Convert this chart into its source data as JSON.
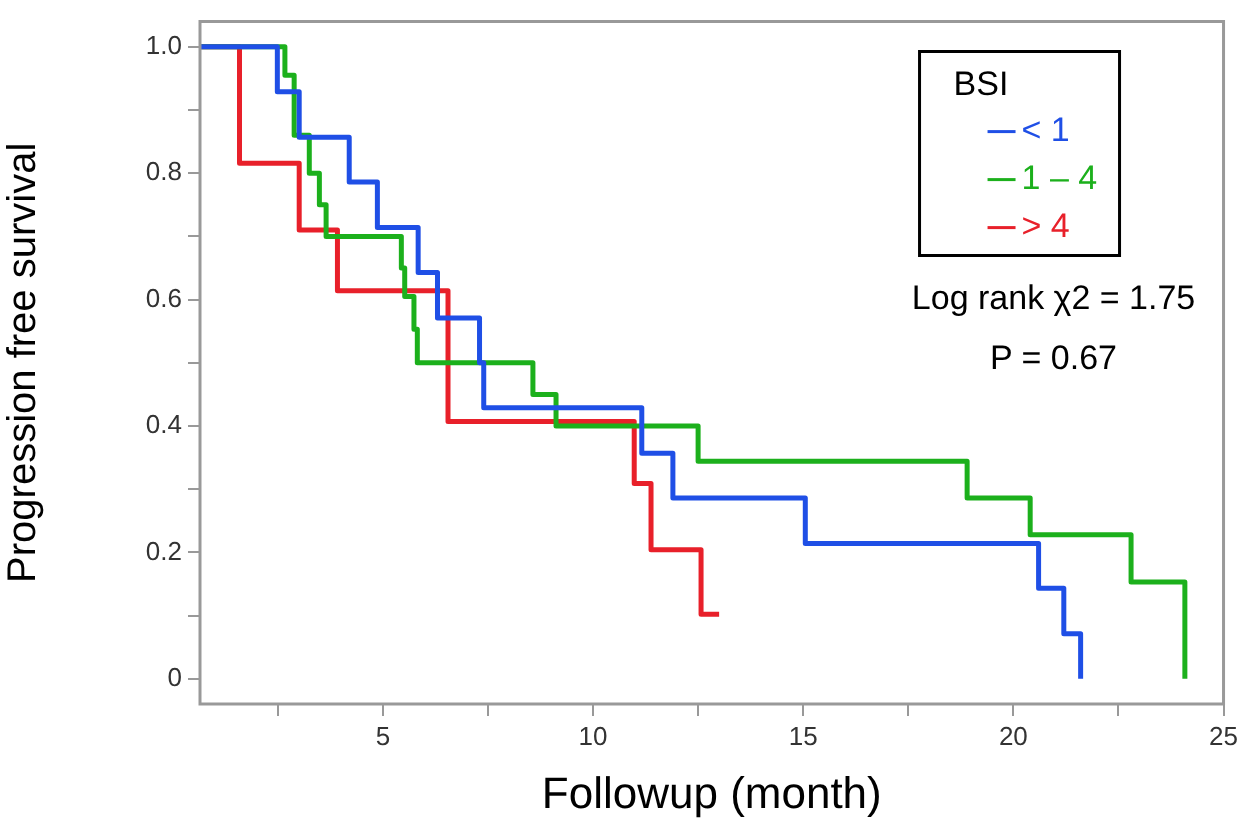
{
  "chart_data": {
    "type": "step",
    "xlabel": "Followup (month)",
    "ylabel": "Progression free survival",
    "legend_title": "BSI",
    "legend": "top right",
    "grid": false,
    "xlim": [
      0.65,
      25
    ],
    "ylim": [
      -0.04,
      1.04
    ],
    "xticks": [
      {
        "value": 2.5,
        "label": null
      },
      5,
      {
        "value": 7.5,
        "label": null
      },
      10,
      {
        "value": 12.5,
        "label": null
      },
      15,
      {
        "value": 17.5,
        "label": null
      },
      20,
      {
        "value": 22.5,
        "label": null
      },
      25
    ],
    "yticks": [
      {
        "value": 0,
        "label": "0"
      },
      {
        "value": 0.1,
        "label": null
      },
      {
        "value": 0.2,
        "label": "0.2"
      },
      {
        "value": 0.3,
        "label": null
      },
      {
        "value": 0.4,
        "label": "0.4"
      },
      {
        "value": 0.5,
        "label": null
      },
      {
        "value": 0.6,
        "label": "0.6"
      },
      {
        "value": 0.7,
        "label": null
      },
      {
        "value": 0.8,
        "label": "0.8"
      },
      {
        "value": 0.9,
        "label": null
      },
      {
        "value": 1.0,
        "label": "1.0"
      }
    ],
    "annotations": [
      "Log rank χ2 = 1.75",
      "P = 0.67"
    ],
    "series": [
      {
        "name": "< 1",
        "color": "#1f4fe6",
        "x": [
          0.65,
          2.49,
          3.01,
          4.2,
          4.87,
          5.84,
          6.3,
          7.3,
          7.4,
          11.16,
          11.9,
          15.05,
          20.6,
          21.2,
          21.6
        ],
        "values": [
          1,
          0.929,
          0.857,
          0.786,
          0.714,
          0.643,
          0.571,
          0.5,
          0.429,
          0.357,
          0.286,
          0.214,
          0.143,
          0.071,
          0
        ]
      },
      {
        "name": "1 – 4",
        "color": "#1cb01c",
        "x": [
          0.65,
          2.67,
          2.89,
          3.25,
          3.49,
          3.65,
          5.44,
          5.52,
          5.74,
          5.82,
          8.57,
          9.12,
          12.5,
          18.9,
          20.4,
          22.8,
          24.08
        ],
        "values": [
          1,
          0.955,
          0.86,
          0.8,
          0.75,
          0.7,
          0.65,
          0.605,
          0.553,
          0.5,
          0.45,
          0.4,
          0.344,
          0.286,
          0.228,
          0.153,
          0
        ]
      },
      {
        "name": "> 4",
        "color": "#e8202a",
        "x": [
          0.65,
          1.59,
          3.01,
          3.92,
          6.55,
          10.98,
          11.38,
          12.57,
          13.0
        ],
        "values": [
          1,
          0.816,
          0.71,
          0.614,
          0.407,
          0.309,
          0.204,
          0.102,
          0.102
        ]
      }
    ]
  }
}
